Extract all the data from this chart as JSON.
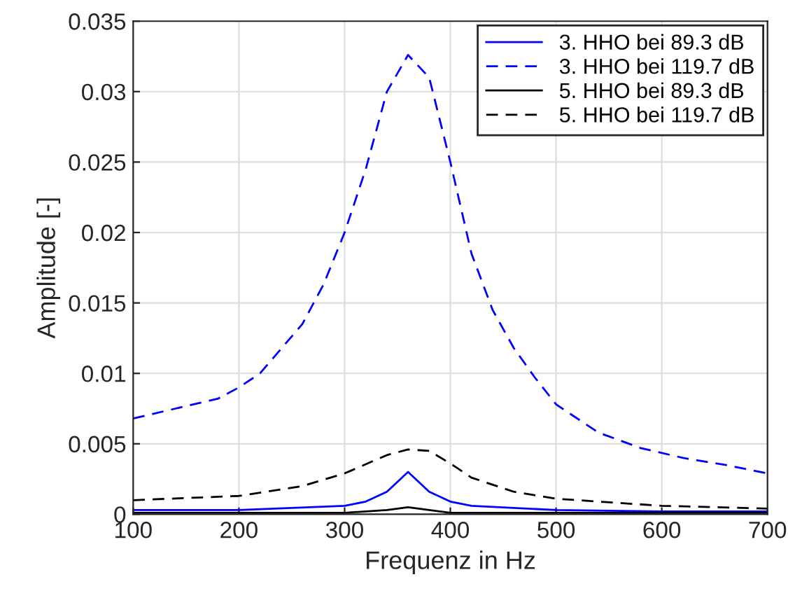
{
  "chart_data": {
    "type": "line",
    "xlabel": "Frequenz in Hz",
    "ylabel": "Amplitude [-]",
    "xlim": [
      100,
      700
    ],
    "xticks": [
      100,
      200,
      300,
      400,
      500,
      600,
      700
    ],
    "ylim": [
      0,
      0.035
    ],
    "yticks": [
      0,
      0.005,
      0.01,
      0.015,
      0.02,
      0.025,
      0.03,
      0.035
    ],
    "grid": true,
    "legend": "top right",
    "series": [
      {
        "name": "3. HHO bei 89.3 dB",
        "color": "#0000ff",
        "line_style": "solid",
        "x": [
          100,
          200,
          300,
          320,
          340,
          360,
          380,
          400,
          420,
          500,
          600,
          700
        ],
        "values": [
          0.0003,
          0.0003,
          0.0006,
          0.0009,
          0.0016,
          0.003,
          0.0016,
          0.0009,
          0.0006,
          0.0003,
          0.0002,
          0.0002
        ]
      },
      {
        "name": "3. HHO bei 119.7 dB",
        "color": "#0000ff",
        "line_style": "dashed",
        "x": [
          100,
          140,
          180,
          200,
          220,
          260,
          280,
          300,
          320,
          340,
          360,
          380,
          400,
          420,
          440,
          460,
          480,
          500,
          540,
          580,
          620,
          660,
          700
        ],
        "values": [
          0.0068,
          0.0075,
          0.0082,
          0.009,
          0.01,
          0.0135,
          0.0163,
          0.02,
          0.0245,
          0.03,
          0.0326,
          0.031,
          0.025,
          0.0185,
          0.0145,
          0.0118,
          0.0097,
          0.0078,
          0.0058,
          0.0047,
          0.004,
          0.0035,
          0.0029
        ]
      },
      {
        "name": "5. HHO bei 89.3 dB",
        "color": "#000000",
        "line_style": "solid",
        "x": [
          100,
          300,
          340,
          360,
          380,
          400,
          700
        ],
        "values": [
          0.0001,
          0.0001,
          0.0003,
          0.0005,
          0.0003,
          0.0001,
          0.0001
        ]
      },
      {
        "name": "5. HHO bei 119.7 dB",
        "color": "#000000",
        "line_style": "dashed",
        "x": [
          100,
          200,
          260,
          300,
          340,
          360,
          380,
          400,
          420,
          460,
          500,
          600,
          700
        ],
        "values": [
          0.001,
          0.0013,
          0.002,
          0.0029,
          0.0042,
          0.0046,
          0.0045,
          0.0036,
          0.0026,
          0.0016,
          0.0011,
          0.0006,
          0.0004
        ]
      }
    ]
  }
}
